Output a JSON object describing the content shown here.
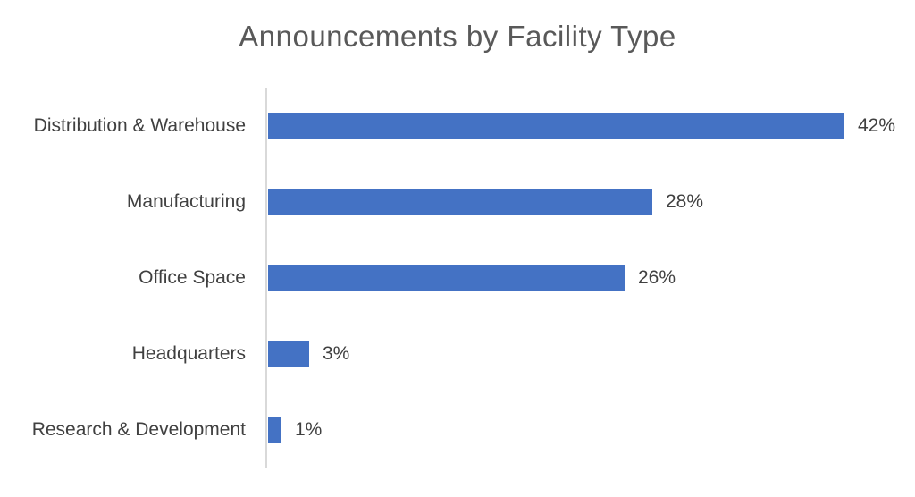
{
  "chart_data": {
    "type": "bar",
    "orientation": "horizontal",
    "title": "Announcements by Facility Type",
    "categories": [
      "Distribution & Warehouse",
      "Manufacturing",
      "Office Space",
      "Headquarters",
      "Research & Development"
    ],
    "values": [
      42,
      28,
      26,
      3,
      1
    ],
    "value_labels": [
      "42%",
      "28%",
      "26%",
      "3%",
      "1%"
    ],
    "xlabel": "",
    "ylabel": "",
    "xlim": [
      0,
      45
    ],
    "grid": false,
    "legend": false,
    "data_label_position": "outside-end",
    "colors": {
      "bar": "#4472C4",
      "axis_line": "#D9D9D9",
      "title_text": "#595959",
      "label_text": "#404040"
    }
  }
}
